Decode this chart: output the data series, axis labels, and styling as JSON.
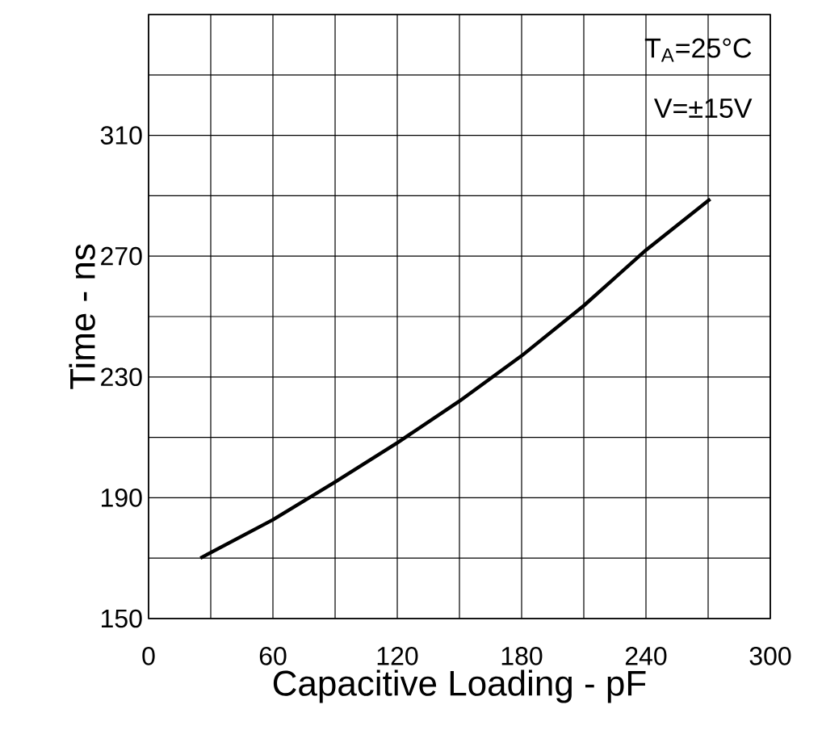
{
  "chart_data": {
    "type": "line",
    "xlabel": "Capacitive Loading - pF",
    "ylabel": "Time - ns",
    "annotations": [
      "T$_{A}$=25°C",
      "V=±15V"
    ],
    "x": [
      25,
      60,
      90,
      120,
      150,
      180,
      210,
      240,
      271
    ],
    "series": [
      {
        "color": "#000000",
        "values": [
          170,
          182.7,
          195.2,
          208.2,
          222,
          237,
          253.6,
          272,
          288.9
        ]
      }
    ],
    "xlim": [
      0,
      300
    ],
    "xticks": [
      0,
      {
        "value": 30,
        "label": null
      },
      60,
      {
        "value": 90,
        "label": null
      },
      120,
      {
        "value": 150,
        "label": null
      },
      180,
      {
        "value": 210,
        "label": null
      },
      240,
      {
        "value": 270,
        "label": null
      },
      300
    ],
    "ylim": [
      150,
      350
    ],
    "yticks": [
      150,
      {
        "value": 170,
        "label": null
      },
      190,
      {
        "value": 210,
        "label": null
      },
      230,
      {
        "value": 250,
        "label": null
      },
      270,
      {
        "value": 290,
        "label": null
      },
      310,
      {
        "value": 330,
        "label": null
      },
      {
        "value": 350,
        "label": null
      }
    ],
    "grid": true,
    "marker": "none",
    "line_style": "solid"
  }
}
